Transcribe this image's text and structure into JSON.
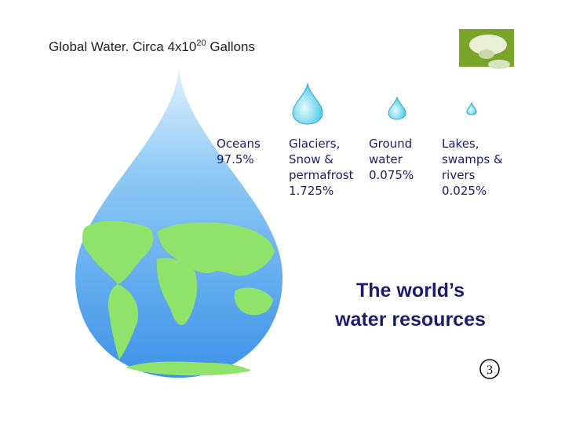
{
  "title": {
    "text": "Global Water. Circa 4x10",
    "superscript": "20",
    "suffix": " Gallons"
  },
  "labels": [
    {
      "lines": [
        "Oceans"
      ],
      "value": "97.5%"
    },
    {
      "lines": [
        "Glaciers,",
        "Snow &",
        "permafrost"
      ],
      "value": "1.725%"
    },
    {
      "lines": [
        "Ground",
        "water"
      ],
      "value": "0.075%"
    },
    {
      "lines": [
        "Lakes,",
        "swamps &",
        "rivers"
      ],
      "value": "0.025%"
    }
  ],
  "heading": [
    "The world’s",
    "water resources"
  ],
  "page_number": "3"
}
